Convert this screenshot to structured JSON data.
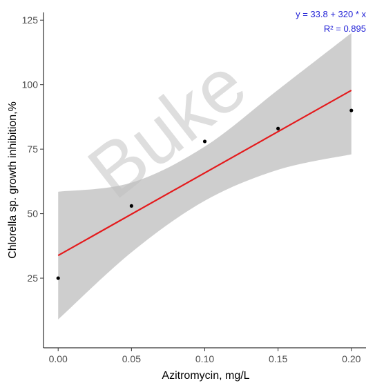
{
  "chart_data": {
    "type": "scatter",
    "title": "",
    "xlabel": "Azitromycin, mg/L",
    "ylabel": "Chlorella sp. growth inhibition,%",
    "xlim": [
      -0.01,
      0.21
    ],
    "ylim": [
      -2,
      128
    ],
    "x_ticks": [
      0.0,
      0.05,
      0.1,
      0.15,
      0.2
    ],
    "x_tick_labels": [
      "0.00",
      "0.05",
      "0.10",
      "0.15",
      "0.20"
    ],
    "y_ticks": [
      25,
      50,
      75,
      100,
      125
    ],
    "y_tick_labels": [
      "25",
      "50",
      "75",
      "100",
      "125"
    ],
    "grid": false,
    "series": [
      {
        "type": "scatter",
        "x": [
          0.0,
          0.05,
          0.1,
          0.15,
          0.2
        ],
        "y": [
          25,
          53,
          78,
          83,
          90
        ],
        "color": "#000000"
      }
    ],
    "regression": {
      "intercept": 33.8,
      "slope": 320,
      "x_range": [
        0.0,
        0.2
      ],
      "color": "#e41a1c",
      "confidence_band": {
        "x": [
          0.0,
          0.05,
          0.1,
          0.15,
          0.2
        ],
        "lower": [
          9,
          35,
          55,
          67,
          73
        ],
        "upper": [
          58.5,
          62,
          76,
          98,
          120
        ],
        "color": "#bdbdbd"
      }
    },
    "annotations": {
      "equation": "y =  33.8  +  320  * x",
      "r_squared": "R² =  0.895",
      "color": "#1f1fd6",
      "placement": "top-right"
    },
    "watermark": "Buke"
  }
}
